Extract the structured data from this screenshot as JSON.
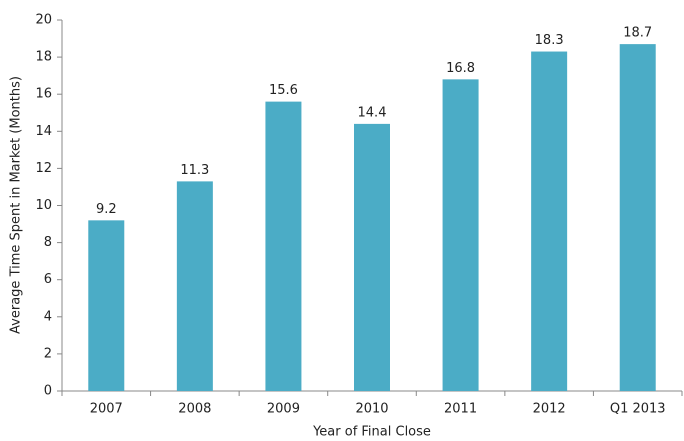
{
  "chart_data": {
    "type": "bar",
    "x_label": "Year of Final Close",
    "y_label": "Average Time Spent in Market (Months)",
    "categories": [
      "2007",
      "2008",
      "2009",
      "2010",
      "2011",
      "2012",
      "Q1 2013"
    ],
    "values": [
      9.2,
      11.3,
      15.6,
      14.4,
      16.8,
      18.3,
      18.7
    ],
    "color": "#4bacc6",
    "ylim": [
      0,
      20
    ],
    "yticks": [
      0,
      2,
      4,
      6,
      8,
      10,
      12,
      14,
      16,
      18,
      20
    ],
    "grid": false
  }
}
